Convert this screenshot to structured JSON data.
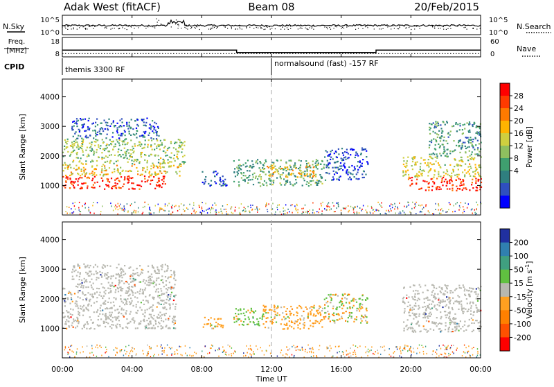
{
  "header": {
    "station": "Adak West (fitACF)",
    "beam": "Beam 08",
    "date": "20/Feb/2015"
  },
  "left_labels": {
    "nsky": "N.Sky",
    "freq_line1": "Freq.",
    "freq_line2": "[MHz]",
    "cpid": "CPID"
  },
  "right_labels": {
    "nsearch": "N.Search",
    "nave": "Nave"
  },
  "cpid_labels": {
    "first": "themis 3300 RF",
    "second": "normalsound (fast) -157 RF"
  },
  "chart_data": {
    "type": "heatmap",
    "x": {
      "label": "Time UT",
      "range": [
        0,
        24
      ],
      "tick_hours": [
        0,
        4,
        8,
        12,
        16,
        20,
        24
      ],
      "tick_labels": [
        "00:00",
        "04:00",
        "08:00",
        "12:00",
        "16:00",
        "20:00",
        "00:00"
      ],
      "marker_hour": 12
    },
    "noise_panel": {
      "left_ticks": [
        "10^5",
        "10^0"
      ],
      "right_ticks": [
        "10^5",
        "10^0"
      ]
    },
    "freq_panel": {
      "left_ticks": [
        18,
        8
      ],
      "right_ticks": [
        60,
        0
      ],
      "freq_segments": [
        {
          "start": 0,
          "end": 10,
          "value_mhz": 11.5
        },
        {
          "start": 10,
          "end": 18,
          "value_mhz": 10.2
        },
        {
          "start": 18,
          "end": 24,
          "value_mhz": 11.5
        }
      ],
      "nave_value": 10
    },
    "power_panel": {
      "ylabel": "Slant Range [km]",
      "yrange": [
        0,
        4600
      ],
      "yticks": [
        1000,
        2000,
        3000,
        4000
      ],
      "colorbar": {
        "label": "Power [dB]",
        "ticks": [
          "28",
          "24",
          "20",
          "16",
          "12",
          "8",
          "4"
        ],
        "colors": [
          "#ff0000",
          "#ff3a00",
          "#ff7a00",
          "#ffb400",
          "#cfcf3f",
          "#8fbf5f",
          "#3f9f6f",
          "#2f7f7f",
          "#2f4fbf",
          "#0000ff"
        ]
      },
      "echoes": [
        {
          "t0": 0.0,
          "t1": 6.0,
          "r0": 900,
          "r1": 1350,
          "level": 0.95
        },
        {
          "t0": 0.0,
          "t1": 6.8,
          "r0": 1350,
          "r1": 1750,
          "level": 0.6
        },
        {
          "t0": 0.0,
          "t1": 7.0,
          "r0": 1750,
          "r1": 2600,
          "level": 0.45
        },
        {
          "t0": 0.5,
          "t1": 5.5,
          "r0": 2600,
          "r1": 3300,
          "level": 0.15
        },
        {
          "t0": 9.8,
          "t1": 15.0,
          "r0": 1000,
          "r1": 1900,
          "level": 0.35
        },
        {
          "t0": 11.5,
          "t1": 14.5,
          "r0": 1300,
          "r1": 1700,
          "level": 0.65
        },
        {
          "t0": 15.0,
          "t1": 17.5,
          "r0": 1200,
          "r1": 2300,
          "level": 0.12
        },
        {
          "t0": 8.0,
          "t1": 9.4,
          "r0": 1000,
          "r1": 1500,
          "level": 0.1
        },
        {
          "t0": 19.8,
          "t1": 24.0,
          "r0": 850,
          "r1": 1300,
          "level": 0.95
        },
        {
          "t0": 19.5,
          "t1": 24.0,
          "r0": 1300,
          "r1": 2000,
          "level": 0.55
        },
        {
          "t0": 21.0,
          "t1": 24.0,
          "r0": 2000,
          "r1": 3200,
          "level": 0.3
        }
      ]
    },
    "velocity_panel": {
      "ylabel": "Slant Range [km]",
      "yrange": [
        0,
        4600
      ],
      "yticks": [
        1000,
        2000,
        3000,
        4000
      ],
      "colorbar": {
        "label": "Velocity [m s^-1]",
        "ticks": [
          "200",
          "100",
          "50",
          "15",
          "-15",
          "-50",
          "-100",
          "-200"
        ],
        "colors": [
          "#2030a0",
          "#3080b0",
          "#40a080",
          "#60c040",
          "#b8b8b0",
          "#ffa020",
          "#ff8000",
          "#ff5000",
          "#ff0000"
        ]
      },
      "ground_scatter_color": "#b8b8b0",
      "echoes": [
        {
          "t0": 0.0,
          "t1": 6.5,
          "r0": 1000,
          "r1": 2400,
          "kind": "ground"
        },
        {
          "t0": 0.5,
          "t1": 6.5,
          "r0": 2400,
          "r1": 3200,
          "kind": "ground"
        },
        {
          "t0": 9.8,
          "t1": 11.5,
          "r0": 1100,
          "r1": 1700,
          "kind": "green"
        },
        {
          "t0": 11.5,
          "t1": 15.0,
          "r0": 1000,
          "r1": 1800,
          "kind": "orange"
        },
        {
          "t0": 15.0,
          "t1": 17.5,
          "r0": 1200,
          "r1": 2200,
          "kind": "mixed"
        },
        {
          "t0": 8.0,
          "t1": 9.3,
          "r0": 1000,
          "r1": 1400,
          "kind": "orange"
        },
        {
          "t0": 19.5,
          "t1": 24.0,
          "r0": 900,
          "r1": 2500,
          "kind": "ground"
        }
      ]
    }
  }
}
